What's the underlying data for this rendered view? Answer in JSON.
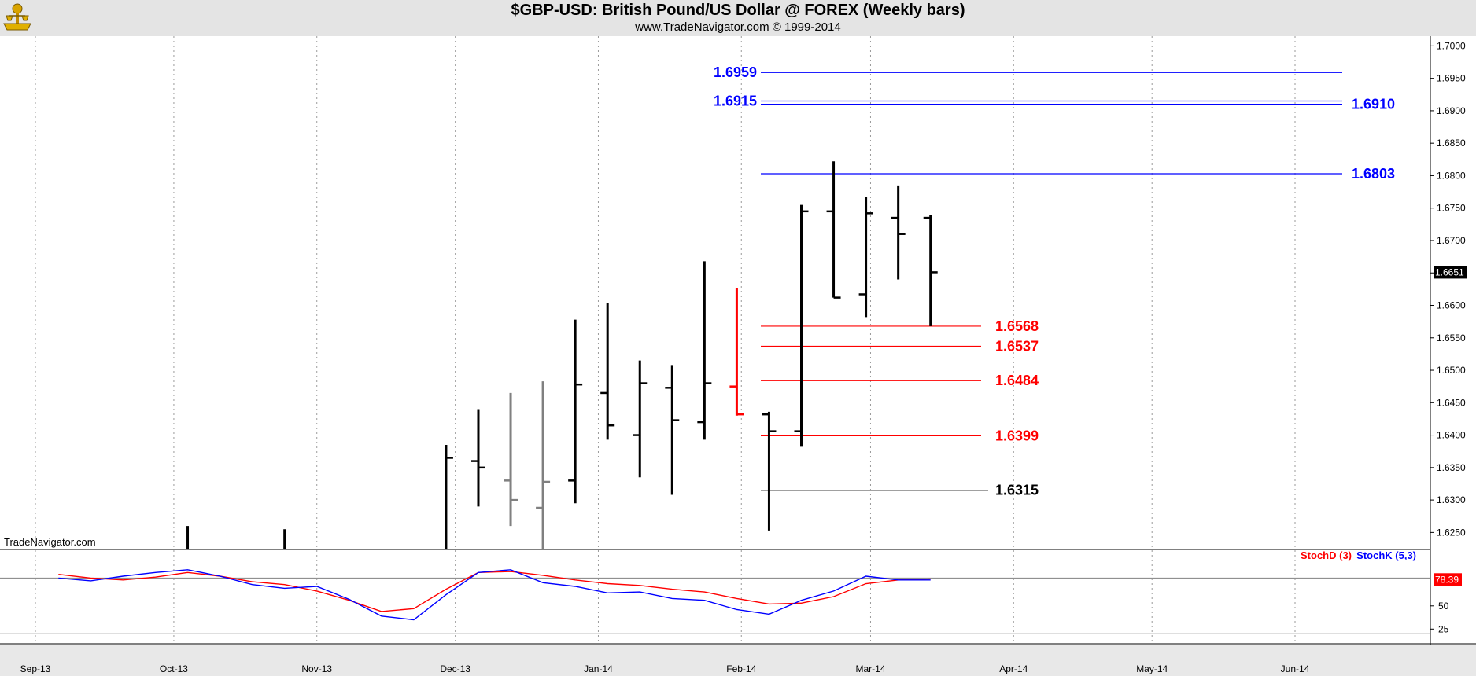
{
  "header": {
    "title": "$GBP-USD:  British Pound/US Dollar @ FOREX  (Weekly bars)",
    "subtitle": "www.TradeNavigator.com © 1999-2014",
    "watermark": "TradeNavigator.com"
  },
  "colors": {
    "background": "#ffffff",
    "header_bg": "#e4e4e4",
    "bar_default": "#000000",
    "bar_gray": "#808080",
    "bar_red": "#ff0000",
    "level_blue": "#0000ff",
    "level_red": "#ff0000",
    "level_black": "#000000",
    "stoch_d": "#ff0000",
    "stoch_k": "#0000ff"
  },
  "chart_data": [
    {
      "type": "ohlc",
      "title": "$GBP-USD:  British Pound/US Dollar @ FOREX  (Weekly bars)",
      "ylim": [
        1.6225,
        1.7015
      ],
      "y_ticks": [
        "1.6250",
        "1.6300",
        "1.6350",
        "1.6400",
        "1.6450",
        "1.6500",
        "1.6550",
        "1.6600",
        "1.6650",
        "1.6700",
        "1.6750",
        "1.6800",
        "1.6850",
        "1.6900",
        "1.6950",
        "1.7000"
      ],
      "x_ticks": [
        {
          "label": "Sep-13",
          "date": "2013-09-01"
        },
        {
          "label": "Oct-13",
          "date": "2013-10-01"
        },
        {
          "label": "Nov-13",
          "date": "2013-11-01"
        },
        {
          "label": "Dec-13",
          "date": "2013-12-01"
        },
        {
          "label": "Jan-14",
          "date": "2014-01-01"
        },
        {
          "label": "Feb-14",
          "date": "2014-02-01"
        },
        {
          "label": "Mar-14",
          "date": "2014-03-01"
        },
        {
          "label": "Apr-14",
          "date": "2014-04-01"
        },
        {
          "label": "May-14",
          "date": "2014-05-01"
        },
        {
          "label": "Jun-14",
          "date": "2014-06-01"
        }
      ],
      "last_price": "1.6651",
      "bars": [
        {
          "date": "2013-10-04",
          "high": 1.626,
          "low": 1.6225,
          "open": null,
          "close": null,
          "color": "black"
        },
        {
          "date": "2013-10-25",
          "high": 1.6255,
          "low": 1.6225,
          "open": null,
          "close": null,
          "color": "black"
        },
        {
          "date": "2013-11-29",
          "high": 1.6385,
          "low": 1.6225,
          "open": null,
          "close": 1.6365,
          "color": "black"
        },
        {
          "date": "2013-12-06",
          "high": 1.644,
          "low": 1.629,
          "open": 1.636,
          "close": 1.635,
          "color": "black"
        },
        {
          "date": "2013-12-13",
          "high": 1.6465,
          "low": 1.626,
          "open": 1.633,
          "close": 1.63,
          "color": "gray"
        },
        {
          "date": "2013-12-20",
          "high": 1.6483,
          "low": 1.6225,
          "open": 1.6288,
          "close": 1.6328,
          "color": "gray"
        },
        {
          "date": "2013-12-27",
          "high": 1.6578,
          "low": 1.6295,
          "open": 1.633,
          "close": 1.6478,
          "color": "black"
        },
        {
          "date": "2014-01-03",
          "high": 1.6603,
          "low": 1.6393,
          "open": 1.6465,
          "close": 1.6415,
          "color": "black"
        },
        {
          "date": "2014-01-10",
          "high": 1.6515,
          "low": 1.6335,
          "open": 1.64,
          "close": 1.648,
          "color": "black"
        },
        {
          "date": "2014-01-17",
          "high": 1.6508,
          "low": 1.6308,
          "open": 1.6473,
          "close": 1.6423,
          "color": "black"
        },
        {
          "date": "2014-01-24",
          "high": 1.6668,
          "low": 1.6393,
          "open": 1.642,
          "close": 1.648,
          "color": "black"
        },
        {
          "date": "2014-01-31",
          "high": 1.6627,
          "low": 1.643,
          "open": 1.6475,
          "close": 1.6432,
          "color": "red"
        },
        {
          "date": "2014-02-07",
          "high": 1.6436,
          "low": 1.6253,
          "open": 1.6432,
          "close": 1.6406,
          "color": "black"
        },
        {
          "date": "2014-02-14",
          "high": 1.6755,
          "low": 1.6382,
          "open": 1.6406,
          "close": 1.6745,
          "color": "black"
        },
        {
          "date": "2014-02-21",
          "high": 1.6822,
          "low": 1.6612,
          "open": 1.6745,
          "close": 1.6612,
          "color": "black"
        },
        {
          "date": "2014-02-28",
          "high": 1.6767,
          "low": 1.6582,
          "open": 1.6617,
          "close": 1.6742,
          "color": "black"
        },
        {
          "date": "2014-03-07",
          "high": 1.6785,
          "low": 1.664,
          "open": 1.6735,
          "close": 1.671,
          "color": "black"
        },
        {
          "date": "2014-03-14",
          "high": 1.674,
          "low": 1.6568,
          "open": 1.6735,
          "close": 1.6651,
          "color": "black"
        }
      ],
      "levels": [
        {
          "value": 1.6959,
          "label": "1.6959",
          "color": "blue",
          "label_side": "left"
        },
        {
          "value": 1.6915,
          "label": "1.6915",
          "color": "blue",
          "label_side": "left"
        },
        {
          "value": 1.691,
          "label": "1.6910",
          "color": "blue",
          "label_side": "right"
        },
        {
          "value": 1.6803,
          "label": "1.6803",
          "color": "blue",
          "label_side": "right"
        },
        {
          "value": 1.6568,
          "label": "1.6568",
          "color": "red",
          "label_side": "right"
        },
        {
          "value": 1.6537,
          "label": "1.6537",
          "color": "red",
          "label_side": "right"
        },
        {
          "value": 1.6484,
          "label": "1.6484",
          "color": "red",
          "label_side": "right"
        },
        {
          "value": 1.6399,
          "label": "1.6399",
          "color": "red",
          "label_side": "right"
        },
        {
          "value": 1.6315,
          "label": "1.6315",
          "color": "black",
          "label_side": "right"
        }
      ]
    },
    {
      "type": "line",
      "ylim": [
        10,
        110
      ],
      "y_ticks": [
        "25",
        "50"
      ],
      "reference_lines": [
        80,
        20
      ],
      "last_value": "78.39",
      "legend": [
        "StochD (3)",
        "StochK (5,3)"
      ],
      "x": [
        "2013-09-06",
        "2013-09-13",
        "2013-09-20",
        "2013-09-27",
        "2013-10-04",
        "2013-10-11",
        "2013-10-18",
        "2013-10-25",
        "2013-11-01",
        "2013-11-08",
        "2013-11-15",
        "2013-11-22",
        "2013-11-29",
        "2013-12-06",
        "2013-12-13",
        "2013-12-20",
        "2013-12-27",
        "2014-01-03",
        "2014-01-10",
        "2014-01-17",
        "2014-01-24",
        "2014-01-31",
        "2014-02-07",
        "2014-02-14",
        "2014-02-21",
        "2014-02-28",
        "2014-03-07",
        "2014-03-14"
      ],
      "series": [
        {
          "name": "StochD (3)",
          "color": "red",
          "values": [
            84,
            80,
            78,
            81,
            86,
            82,
            76,
            73,
            66,
            56,
            44,
            47,
            68,
            86,
            87,
            83,
            78,
            74,
            72,
            68,
            65,
            58,
            52,
            53,
            60,
            74,
            78,
            79
          ]
        },
        {
          "name": "StochK (5,3)",
          "color": "blue",
          "values": [
            80,
            77,
            82,
            86,
            89,
            82,
            73,
            69,
            71,
            57,
            39,
            35,
            62,
            86,
            89,
            75,
            71,
            64,
            65,
            58,
            56,
            46,
            41,
            56,
            66,
            82,
            78,
            78
          ]
        }
      ]
    }
  ]
}
